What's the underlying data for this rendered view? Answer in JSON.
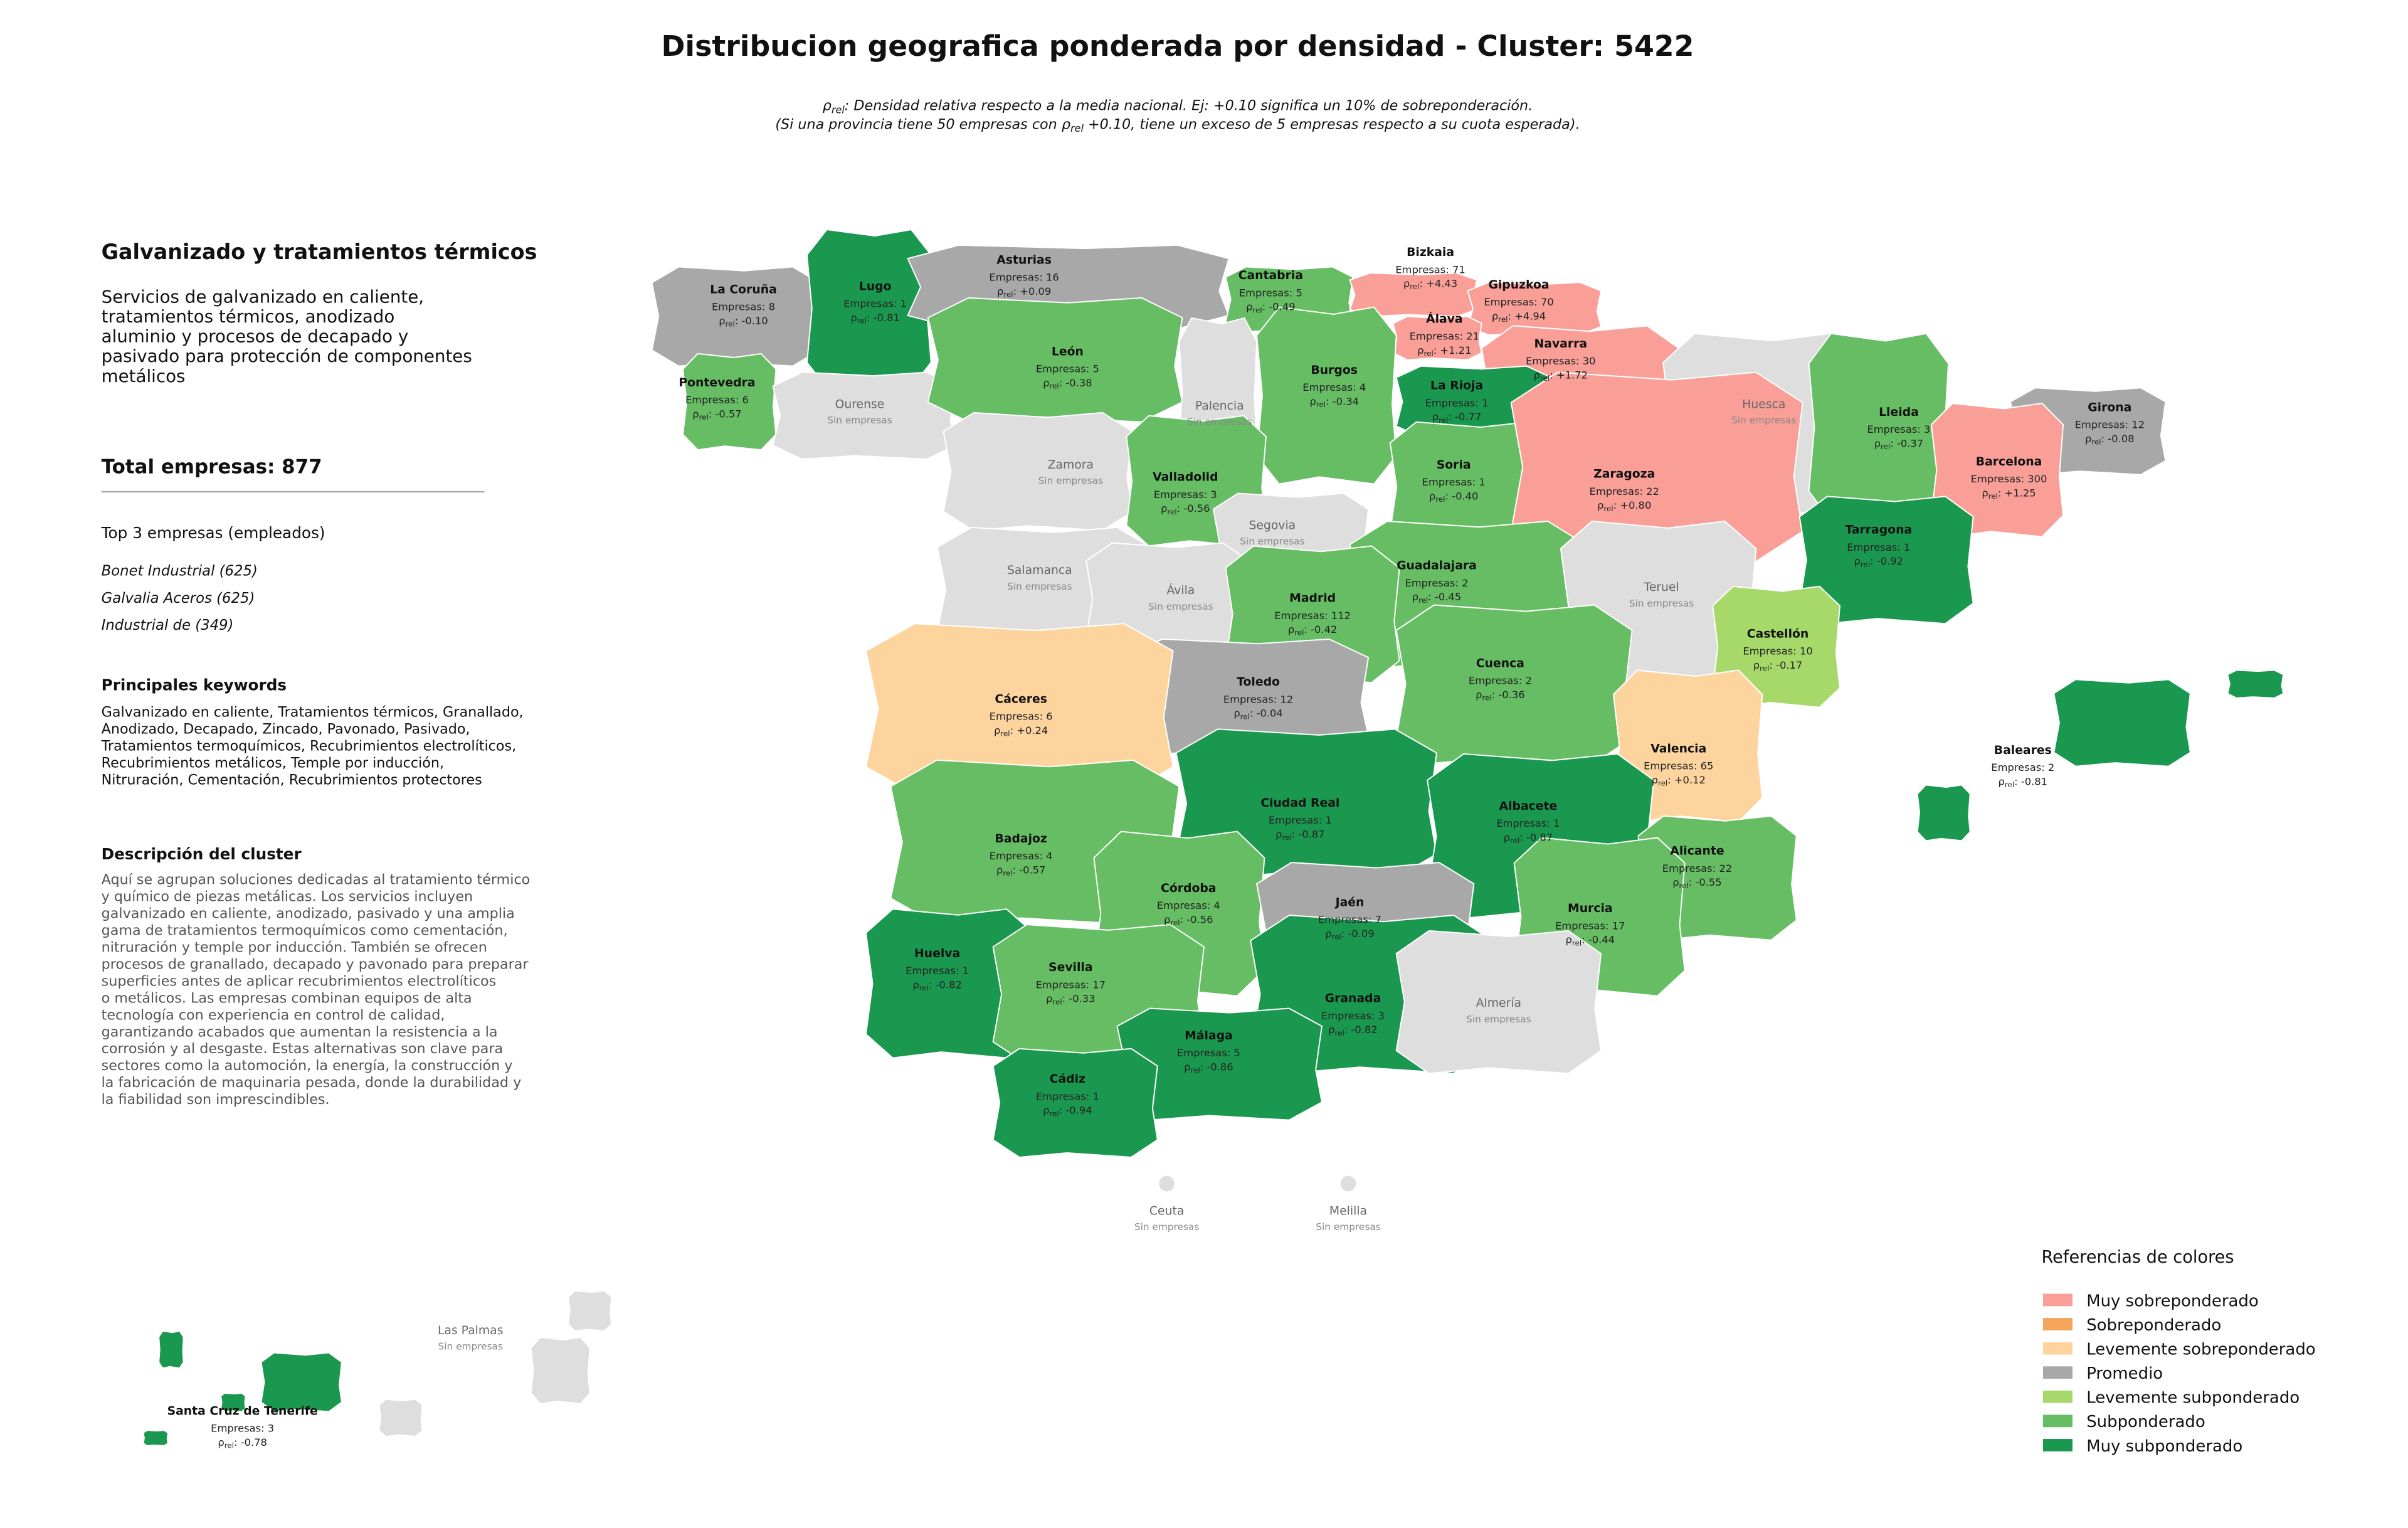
{
  "header": {
    "title": "Distribucion geografica ponderada por densidad - Cluster: 5422",
    "rho_symbol": "ρ",
    "rho_sub": "rel",
    "rho_sep": ": ",
    "subtitle_line1": ": Densidad relativa respecto a la media nacional. Ej: +0.10 significa un 10% de sobreponderación.",
    "subtitle_line2_before": "(Si una provincia tiene 50 empresas con ",
    "subtitle_line2_after": " +0.10, tiene un exceso de 5 empresas respecto a su cuota esperada)."
  },
  "panel": {
    "heading": "Galvanizado y tratamientos térmicos",
    "summary": [
      "Servicios de galvanizado en caliente,",
      "tratamientos térmicos, anodizado",
      "aluminio y procesos de decapado y",
      "pasivado para protección de componentes",
      "metálicos"
    ],
    "total": "Total empresas: 877",
    "top_title": "Top 3 empresas (empleados)",
    "top": [
      "Bonet Industrial (625)",
      "Galvalia Aceros (625)",
      "Industrial de (349)"
    ],
    "keywords_title": "Principales keywords",
    "keywords": [
      "Galvanizado en caliente, Tratamientos térmicos, Granallado,",
      "Anodizado, Decapado, Zincado, Pavonado, Pasivado,",
      "Tratamientos termoquímicos, Recubrimientos electrolíticos,",
      "Recubrimientos metálicos, Temple por inducción,",
      "Nitruración, Cementación, Recubrimientos protectores"
    ],
    "description_title": "Descripción del cluster",
    "description": [
      "Aquí se agrupan soluciones dedicadas al tratamiento térmico",
      "y químico de piezas metálicas. Los servicios incluyen",
      "galvanizado en caliente, anodizado, pasivado y una amplia",
      "gama de tratamientos termoquímicos como cementación,",
      "nitruración y temple por inducción. También se ofrecen",
      "procesos de granallado, decapado y pavonado para preparar",
      "superficies antes de aplicar recubrimientos electrolíticos",
      "o metálicos. Las empresas combinan equipos de alta",
      "tecnología con experiencia en control de calidad,",
      "garantizando acabados que aumentan la resistencia a la",
      "corrosión y al desgaste. Estas alternativas son clave para",
      "sectores como la automoción, la energía, la construcción y",
      "la fabricación de maquinaria pesada, donde la durabilidad y",
      "la fiabilidad son imprescindibles."
    ]
  },
  "legend": {
    "title": "Referencias de colores",
    "items": [
      {
        "label": "Muy sobreponderado",
        "color": "#f99f98"
      },
      {
        "label": "Sobreponderado",
        "color": "#f5a55a"
      },
      {
        "label": "Levemente sobreponderado",
        "color": "#fdd49e"
      },
      {
        "label": "Promedio",
        "color": "#a8a8a8"
      },
      {
        "label": "Levemente subponderado",
        "color": "#a6d96a"
      },
      {
        "label": "Subponderado",
        "color": "#66bd63"
      },
      {
        "label": "Muy subponderado",
        "color": "#1a9850"
      }
    ]
  },
  "map": {
    "no_data_label": "Sin empresas",
    "no_data_color": "#dedede",
    "provinces": [
      {
        "name": "La Coruña",
        "empresas": "Empresas: 8",
        "rho": "-0.10",
        "category": 3
      },
      {
        "name": "Lugo",
        "empresas": "Empresas: 1",
        "rho": "-0.81",
        "category": 6
      },
      {
        "name": "Asturias",
        "empresas": "Empresas: 16",
        "rho": "+0.09",
        "category": 3
      },
      {
        "name": "Cantabria",
        "empresas": "Empresas: 5",
        "rho": "-0.49",
        "category": 5
      },
      {
        "name": "Bizkaia",
        "empresas": "Empresas: 71",
        "rho": "+4.43",
        "category": 0
      },
      {
        "name": "Gipuzkoa",
        "empresas": "Empresas: 70",
        "rho": "+4.94",
        "category": 0
      },
      {
        "name": "Álava",
        "empresas": "Empresas: 21",
        "rho": "+1.21",
        "category": 0
      },
      {
        "name": "Navarra",
        "empresas": "Empresas: 30",
        "rho": "+1.72",
        "category": 0
      },
      {
        "name": "Pontevedra",
        "empresas": "Empresas: 6",
        "rho": "-0.57",
        "category": 5
      },
      {
        "name": "Ourense"
      },
      {
        "name": "León",
        "empresas": "Empresas: 5",
        "rho": "-0.38",
        "category": 5
      },
      {
        "name": "Palencia"
      },
      {
        "name": "Burgos",
        "empresas": "Empresas: 4",
        "rho": "-0.34",
        "category": 5
      },
      {
        "name": "La Rioja",
        "empresas": "Empresas: 1",
        "rho": "-0.77",
        "category": 6
      },
      {
        "name": "Huesca"
      },
      {
        "name": "Lleida",
        "empresas": "Empresas: 3",
        "rho": "-0.37",
        "category": 5
      },
      {
        "name": "Girona",
        "empresas": "Empresas: 12",
        "rho": "-0.08",
        "category": 3
      },
      {
        "name": "Barcelona",
        "empresas": "Empresas: 300",
        "rho": "+1.25",
        "category": 0
      },
      {
        "name": "Zamora"
      },
      {
        "name": "Valladolid",
        "empresas": "Empresas: 3",
        "rho": "-0.56",
        "category": 5
      },
      {
        "name": "Soria",
        "empresas": "Empresas: 1",
        "rho": "-0.40",
        "category": 5
      },
      {
        "name": "Zaragoza",
        "empresas": "Empresas: 22",
        "rho": "+0.80",
        "category": 0
      },
      {
        "name": "Segovia"
      },
      {
        "name": "Tarragona",
        "empresas": "Empresas: 1",
        "rho": "-0.92",
        "category": 6
      },
      {
        "name": "Salamanca"
      },
      {
        "name": "Guadalajara",
        "empresas": "Empresas: 2",
        "rho": "-0.45",
        "category": 5
      },
      {
        "name": "Ávila"
      },
      {
        "name": "Madrid",
        "empresas": "Empresas: 112",
        "rho": "-0.42",
        "category": 5
      },
      {
        "name": "Teruel"
      },
      {
        "name": "Castellón",
        "empresas": "Empresas: 10",
        "rho": "-0.17",
        "category": 4
      },
      {
        "name": "Cuenca",
        "empresas": "Empresas: 2",
        "rho": "-0.36",
        "category": 5
      },
      {
        "name": "Toledo",
        "empresas": "Empresas: 12",
        "rho": "-0.04",
        "category": 3
      },
      {
        "name": "Cáceres",
        "empresas": "Empresas: 6",
        "rho": "+0.24",
        "category": 2
      },
      {
        "name": "Valencia",
        "empresas": "Empresas: 65",
        "rho": "+0.12",
        "category": 2
      },
      {
        "name": "Baleares",
        "empresas": "Empresas: 2",
        "rho": "-0.81",
        "category": 6
      },
      {
        "name": "Ciudad Real",
        "empresas": "Empresas: 1",
        "rho": "-0.87",
        "category": 6
      },
      {
        "name": "Albacete",
        "empresas": "Empresas: 1",
        "rho": "-0.87",
        "category": 6
      },
      {
        "name": "Badajoz",
        "empresas": "Empresas: 4",
        "rho": "-0.57",
        "category": 5
      },
      {
        "name": "Alicante",
        "empresas": "Empresas: 22",
        "rho": "-0.55",
        "category": 5
      },
      {
        "name": "Córdoba",
        "empresas": "Empresas: 4",
        "rho": "-0.56",
        "category": 5
      },
      {
        "name": "Jaén",
        "empresas": "Empresas: 7",
        "rho": "-0.09",
        "category": 3
      },
      {
        "name": "Murcia",
        "empresas": "Empresas: 17",
        "rho": "-0.44",
        "category": 5
      },
      {
        "name": "Huelva",
        "empresas": "Empresas: 1",
        "rho": "-0.82",
        "category": 6
      },
      {
        "name": "Sevilla",
        "empresas": "Empresas: 17",
        "rho": "-0.33",
        "category": 5
      },
      {
        "name": "Granada",
        "empresas": "Empresas: 3",
        "rho": "-0.82",
        "category": 6
      },
      {
        "name": "Almería"
      },
      {
        "name": "Málaga",
        "empresas": "Empresas: 5",
        "rho": "-0.86",
        "category": 6
      },
      {
        "name": "Cádiz",
        "empresas": "Empresas: 1",
        "rho": "-0.94",
        "category": 6
      },
      {
        "name": "Ceuta"
      },
      {
        "name": "Melilla"
      },
      {
        "name": "Las Palmas"
      },
      {
        "name": "Santa Cruz de Tenerife",
        "empresas": "Empresas: 3",
        "rho": "-0.78",
        "category": 6
      }
    ]
  }
}
